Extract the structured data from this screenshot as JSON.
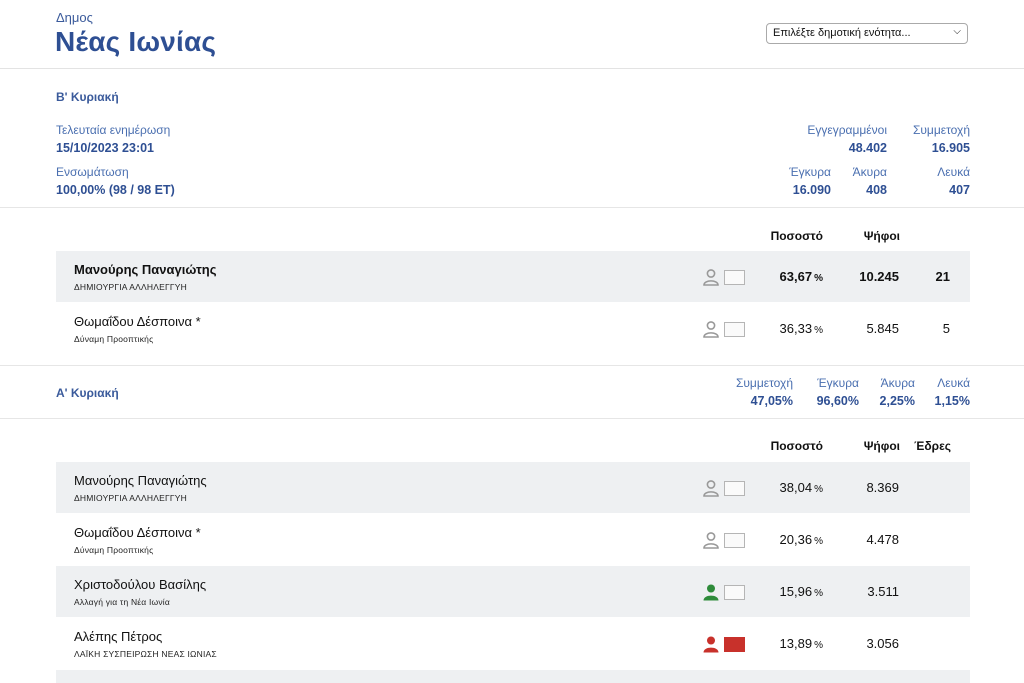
{
  "header": {
    "municipality_label": "Δημος",
    "municipality_name": "Νέας Ιωνίας",
    "unit_select": {
      "selected": "Επιλέξτε δημοτική ενότητα..."
    }
  },
  "round2": {
    "title": "Β' Κυριακή",
    "last_update_label": "Τελευταία ενημέρωση",
    "last_update_value": "15/10/2023 23:01",
    "incorporation_label": "Ενσωμάτωση",
    "incorporation_value": "100,00% (98 / 98 ΕΤ)",
    "registered_label": "Εγγεγραμμένοι",
    "registered_value": "48.402",
    "turnout_label": "Συμμετοχή",
    "turnout_value": "16.905",
    "valid_label": "Έγκυρα",
    "valid_value": "16.090",
    "invalid_label": "Άκυρα",
    "invalid_value": "408",
    "blank_label": "Λευκά",
    "blank_value": "407",
    "col_percent": "Ποσοστό",
    "col_votes": "Ψήφοι",
    "candidates": [
      {
        "name": "Μανούρης Παναγιώτης",
        "party": "ΔΗΜΙΟΥΡΓΙΑ ΑΛΛΗΛΕΓΓΥΗ",
        "percent": "63,67",
        "unit": "%",
        "votes": "10.245",
        "seats": "21",
        "icon_color": "#999999",
        "flag_color": "#fafafa"
      },
      {
        "name": "Θωμαΐδου Δέσποινα *",
        "party": "Δύναμη Προοπτικής",
        "percent": "36,33",
        "unit": "%",
        "votes": "5.845",
        "seats": "5",
        "icon_color": "#999999",
        "flag_color": "#fafafa"
      }
    ]
  },
  "round1": {
    "title": "Α' Κυριακή",
    "turnout_label": "Συμμετοχή",
    "turnout_value": "47,05%",
    "valid_label": "Έγκυρα",
    "valid_value": "96,60%",
    "invalid_label": "Άκυρα",
    "invalid_value": "2,25%",
    "blank_label": "Λευκά",
    "blank_value": "1,15%",
    "col_percent": "Ποσοστό",
    "col_votes": "Ψήφοι",
    "col_seats": "Έδρες",
    "candidates": [
      {
        "name": "Μανούρης Παναγιώτης",
        "party": "ΔΗΜΙΟΥΡΓΙΑ ΑΛΛΗΛΕΓΓΥΗ",
        "percent": "38,04",
        "unit": "%",
        "votes": "8.369",
        "icon_color": "#999999",
        "flag_color": "#fafafa"
      },
      {
        "name": "Θωμαΐδου Δέσποινα *",
        "party": "Δύναμη Προοπτικής",
        "percent": "20,36",
        "unit": "%",
        "votes": "4.478",
        "icon_color": "#999999",
        "flag_color": "#fafafa"
      },
      {
        "name": "Χριστοδούλου Βασίλης",
        "party": "Αλλαγή για τη Νέα Ιωνία",
        "percent": "15,96",
        "unit": "%",
        "votes": "3.511",
        "icon_color": "#2e8b3a",
        "flag_color": "#fafafa"
      },
      {
        "name": "Αλέπης Πέτρος",
        "party": "ΛΑΪΚΗ ΣΥΣΠΕΙΡΩΣΗ ΝΕΑΣ ΙΩΝΙΑΣ",
        "percent": "13,89",
        "unit": "%",
        "votes": "3.056",
        "icon_color": "#c8312b",
        "flag_color": "#c8312b"
      }
    ]
  }
}
